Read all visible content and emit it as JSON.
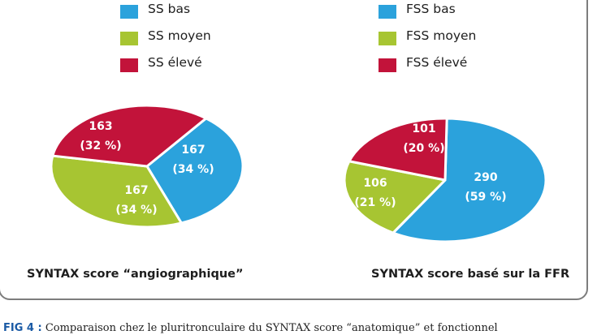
{
  "chart_data": [
    {
      "type": "pie",
      "title": "SYNTAX score “angiographique”",
      "legend": [
        "SS bas",
        "SS moyen",
        "SS élevé"
      ],
      "legend_placement": "top",
      "slices": [
        {
          "name": "SS bas",
          "value": 167,
          "label": "167",
          "percent_label": "(34 %)",
          "color": "#2ba2dc"
        },
        {
          "name": "SS moyen",
          "value": 167,
          "label": "167",
          "percent_label": "(34 %)",
          "color": "#a7c532"
        },
        {
          "name": "SS élevé",
          "value": 163,
          "label": "163",
          "percent_label": "(32 %)",
          "color": "#c2133a"
        }
      ]
    },
    {
      "type": "pie",
      "title": "SYNTAX score basé sur la FFR",
      "legend": [
        "FSS bas",
        "FSS moyen",
        "FSS élevé"
      ],
      "legend_placement": "top",
      "slices": [
        {
          "name": "FSS bas",
          "value": 290,
          "label": "290",
          "percent_label": "(59 %)",
          "color": "#2ba2dc"
        },
        {
          "name": "FSS moyen",
          "value": 106,
          "label": "106",
          "percent_label": "(21 %)",
          "color": "#a7c532"
        },
        {
          "name": "FSS élevé",
          "value": 101,
          "label": "101",
          "percent_label": "(20 %)",
          "color": "#c2133a"
        }
      ]
    }
  ],
  "caption": {
    "fig_num": "FIG 4 :",
    "text": "Comparaison chez le pluritronculaire du SYNTAX score “anatomique” et fonctionnel"
  }
}
